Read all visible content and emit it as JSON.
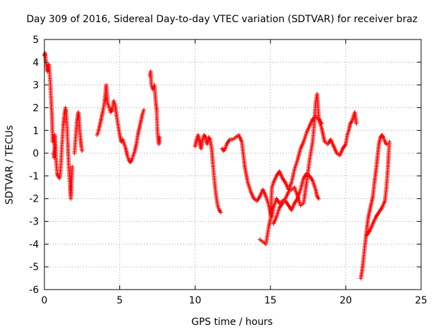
{
  "chart_data": {
    "type": "scatter",
    "title": "Day 309 of 2016, Sidereal Day-to-day VTEC variation (SDTVAR) for receiver braz",
    "xlabel": "GPS time / hours",
    "ylabel": "SDTVAR / TECUs",
    "xlim": [
      0,
      25
    ],
    "ylim": [
      -6,
      5
    ],
    "xticks": [
      "0",
      "5",
      "10",
      "15",
      "20",
      "25"
    ],
    "yticks": [
      "-6",
      "-5",
      "-4",
      "-3",
      "-2",
      "-1",
      "0",
      "1",
      "2",
      "3",
      "4",
      "5"
    ],
    "grid": true,
    "marker": "plus",
    "color": "#ff0000",
    "segments": [
      [
        [
          0.0,
          4.3
        ],
        [
          0.05,
          4.4
        ],
        [
          0.1,
          4.0
        ],
        [
          0.15,
          3.8
        ],
        [
          0.2,
          3.6
        ],
        [
          0.25,
          3.7
        ],
        [
          0.3,
          3.9
        ],
        [
          0.35,
          3.5
        ],
        [
          0.4,
          3.0
        ],
        [
          0.45,
          2.3
        ],
        [
          0.5,
          1.7
        ],
        [
          0.55,
          0.5
        ]
      ],
      [
        [
          0.6,
          0.0
        ],
        [
          0.65,
          -0.2
        ],
        [
          0.7,
          0.8
        ],
        [
          0.75,
          -0.1
        ],
        [
          0.8,
          -0.5
        ],
        [
          0.85,
          -0.9
        ],
        [
          0.9,
          -1.0
        ],
        [
          0.95,
          -1.05
        ],
        [
          1.0,
          -1.1
        ],
        [
          1.05,
          -0.9
        ],
        [
          1.1,
          -0.5
        ],
        [
          1.15,
          0.2
        ],
        [
          1.2,
          0.7
        ],
        [
          1.25,
          1.2
        ],
        [
          1.3,
          1.5
        ],
        [
          1.35,
          1.8
        ],
        [
          1.4,
          2.0
        ],
        [
          1.45,
          1.7
        ],
        [
          1.5,
          1.2
        ],
        [
          1.55,
          0.5
        ],
        [
          1.6,
          -0.3
        ],
        [
          1.65,
          -0.9
        ],
        [
          1.7,
          -1.4
        ],
        [
          1.75,
          -2.0
        ],
        [
          1.8,
          -1.3
        ],
        [
          1.85,
          -0.6
        ]
      ],
      [
        [
          2.0,
          0.0
        ],
        [
          2.05,
          0.5
        ],
        [
          2.1,
          0.9
        ],
        [
          2.15,
          1.3
        ],
        [
          2.2,
          1.6
        ],
        [
          2.25,
          1.8
        ],
        [
          2.3,
          1.5
        ],
        [
          2.35,
          1.0
        ],
        [
          2.4,
          0.6
        ],
        [
          2.45,
          0.3
        ],
        [
          2.5,
          0.1
        ]
      ],
      [
        [
          3.5,
          0.8
        ],
        [
          3.6,
          1.0
        ],
        [
          3.7,
          1.3
        ],
        [
          3.8,
          1.6
        ],
        [
          3.9,
          1.9
        ],
        [
          4.0,
          2.3
        ],
        [
          4.05,
          2.6
        ],
        [
          4.1,
          3.0
        ],
        [
          4.15,
          2.6
        ],
        [
          4.2,
          2.2
        ],
        [
          4.3,
          2.0
        ],
        [
          4.4,
          1.8
        ],
        [
          4.5,
          1.9
        ],
        [
          4.6,
          2.3
        ],
        [
          4.7,
          2.1
        ],
        [
          4.8,
          1.6
        ],
        [
          4.9,
          1.2
        ],
        [
          5.0,
          0.8
        ],
        [
          5.1,
          0.5
        ],
        [
          5.2,
          0.6
        ],
        [
          5.3,
          0.4
        ],
        [
          5.4,
          0.2
        ],
        [
          5.5,
          -0.1
        ],
        [
          5.6,
          -0.3
        ],
        [
          5.7,
          -0.4
        ],
        [
          5.8,
          -0.3
        ],
        [
          5.9,
          -0.1
        ],
        [
          6.0,
          0.1
        ],
        [
          6.1,
          0.4
        ],
        [
          6.2,
          0.8
        ],
        [
          6.3,
          1.1
        ],
        [
          6.4,
          1.4
        ],
        [
          6.5,
          1.7
        ],
        [
          6.6,
          1.9
        ]
      ],
      [
        [
          7.0,
          3.4
        ],
        [
          7.05,
          3.6
        ],
        [
          7.1,
          3.0
        ],
        [
          7.2,
          2.8
        ],
        [
          7.3,
          3.0
        ],
        [
          7.35,
          2.6
        ],
        [
          7.4,
          2.2
        ],
        [
          7.45,
          1.9
        ],
        [
          7.5,
          1.0
        ],
        [
          7.55,
          0.6
        ],
        [
          7.6,
          0.4
        ],
        [
          7.65,
          0.7
        ]
      ],
      [
        [
          10.0,
          0.3
        ],
        [
          10.1,
          0.6
        ],
        [
          10.2,
          0.8
        ],
        [
          10.3,
          0.5
        ],
        [
          10.4,
          0.2
        ],
        [
          10.5,
          0.6
        ],
        [
          10.6,
          0.8
        ],
        [
          10.7,
          0.7
        ],
        [
          10.8,
          0.4
        ],
        [
          10.9,
          0.7
        ],
        [
          11.0,
          0.6
        ],
        [
          11.1,
          0.2
        ],
        [
          11.2,
          -0.6
        ],
        [
          11.3,
          -1.3
        ],
        [
          11.4,
          -1.9
        ],
        [
          11.5,
          -2.3
        ],
        [
          11.6,
          -2.5
        ],
        [
          11.7,
          -2.6
        ]
      ],
      [
        [
          11.8,
          0.2
        ],
        [
          11.9,
          0.1
        ],
        [
          12.0,
          0.2
        ],
        [
          12.1,
          0.4
        ],
        [
          12.3,
          0.6
        ],
        [
          12.5,
          0.6
        ],
        [
          12.7,
          0.7
        ],
        [
          12.9,
          0.8
        ],
        [
          13.1,
          0.5
        ],
        [
          13.3,
          -0.6
        ],
        [
          13.5,
          -1.3
        ],
        [
          13.7,
          -1.7
        ],
        [
          13.9,
          -2.0
        ],
        [
          14.1,
          -2.1
        ],
        [
          14.3,
          -1.9
        ],
        [
          14.5,
          -1.6
        ],
        [
          14.7,
          -1.9
        ],
        [
          14.9,
          -2.3
        ],
        [
          15.0,
          -2.6
        ],
        [
          15.1,
          -2.8
        ],
        [
          15.2,
          -2.4
        ],
        [
          15.4,
          -2.0
        ],
        [
          15.6,
          -2.2
        ],
        [
          15.8,
          -2.1
        ],
        [
          16.0,
          -2.0
        ],
        [
          16.2,
          -1.7
        ],
        [
          16.4,
          -1.6
        ],
        [
          16.6,
          -1.5
        ],
        [
          16.8,
          -1.9
        ],
        [
          17.0,
          -2.3
        ],
        [
          17.2,
          -2.2
        ],
        [
          17.4,
          -1.3
        ],
        [
          17.6,
          -0.3
        ],
        [
          17.8,
          0.5
        ],
        [
          17.9,
          1.2
        ],
        [
          18.0,
          2.2
        ],
        [
          18.1,
          2.6
        ],
        [
          18.2,
          1.6
        ],
        [
          18.3,
          1.3
        ],
        [
          18.4,
          1.1
        ],
        [
          18.5,
          0.8
        ],
        [
          18.6,
          0.5
        ],
        [
          18.8,
          0.4
        ],
        [
          19.0,
          0.6
        ],
        [
          19.2,
          0.3
        ],
        [
          19.4,
          0.0
        ],
        [
          19.6,
          -0.1
        ],
        [
          19.8,
          0.2
        ],
        [
          20.0,
          0.4
        ],
        [
          20.1,
          0.8
        ],
        [
          20.2,
          1.0
        ],
        [
          20.3,
          1.3
        ],
        [
          20.4,
          1.4
        ],
        [
          20.5,
          1.6
        ],
        [
          20.6,
          1.8
        ],
        [
          20.7,
          1.3
        ]
      ],
      [
        [
          14.3,
          -3.8
        ],
        [
          14.5,
          -3.9
        ],
        [
          14.7,
          -4.0
        ],
        [
          14.8,
          -3.6
        ],
        [
          14.9,
          -3.2
        ],
        [
          15.0,
          -2.9
        ],
        [
          15.1,
          -1.5
        ],
        [
          15.2,
          -1.3
        ],
        [
          15.4,
          -1.0
        ],
        [
          15.6,
          -0.8
        ],
        [
          15.8,
          -1.1
        ],
        [
          16.0,
          -1.3
        ],
        [
          16.2,
          -1.6
        ],
        [
          16.4,
          -1.3
        ],
        [
          16.6,
          -0.7
        ],
        [
          16.8,
          -0.3
        ],
        [
          17.0,
          0.2
        ],
        [
          17.2,
          0.5
        ],
        [
          17.4,
          0.9
        ],
        [
          17.6,
          1.2
        ],
        [
          17.8,
          1.5
        ],
        [
          18.0,
          1.6
        ],
        [
          18.2,
          1.5
        ],
        [
          18.4,
          1.3
        ]
      ],
      [
        [
          15.2,
          -3.1
        ],
        [
          15.4,
          -2.8
        ],
        [
          15.6,
          -2.4
        ],
        [
          15.8,
          -2.2
        ],
        [
          16.0,
          -2.1
        ],
        [
          16.2,
          -2.3
        ],
        [
          16.4,
          -2.5
        ],
        [
          16.6,
          -2.2
        ],
        [
          16.8,
          -2.0
        ],
        [
          17.0,
          -1.6
        ],
        [
          17.2,
          -1.1
        ],
        [
          17.4,
          -0.9
        ],
        [
          17.6,
          -1.0
        ],
        [
          17.8,
          -1.2
        ],
        [
          18.0,
          -1.6
        ],
        [
          18.1,
          -1.9
        ],
        [
          18.2,
          -2.0
        ]
      ],
      [
        [
          21.0,
          -5.5
        ],
        [
          21.1,
          -5.1
        ],
        [
          21.2,
          -4.5
        ],
        [
          21.3,
          -3.9
        ],
        [
          21.4,
          -3.3
        ],
        [
          21.5,
          -2.8
        ],
        [
          21.6,
          -2.5
        ],
        [
          21.7,
          -2.2
        ],
        [
          21.8,
          -1.9
        ],
        [
          21.9,
          -1.3
        ],
        [
          22.0,
          -0.8
        ],
        [
          22.1,
          -0.2
        ],
        [
          22.2,
          0.4
        ],
        [
          22.3,
          0.7
        ],
        [
          22.4,
          0.8
        ],
        [
          22.5,
          0.7
        ],
        [
          22.6,
          0.5
        ],
        [
          22.7,
          0.4
        ]
      ],
      [
        [
          21.4,
          -3.6
        ],
        [
          21.6,
          -3.4
        ],
        [
          21.8,
          -3.1
        ],
        [
          22.0,
          -2.8
        ],
        [
          22.2,
          -2.6
        ],
        [
          22.4,
          -2.4
        ],
        [
          22.6,
          -2.1
        ],
        [
          22.7,
          -1.5
        ],
        [
          22.8,
          -0.6
        ],
        [
          22.85,
          0.0
        ],
        [
          22.9,
          0.5
        ]
      ]
    ]
  }
}
